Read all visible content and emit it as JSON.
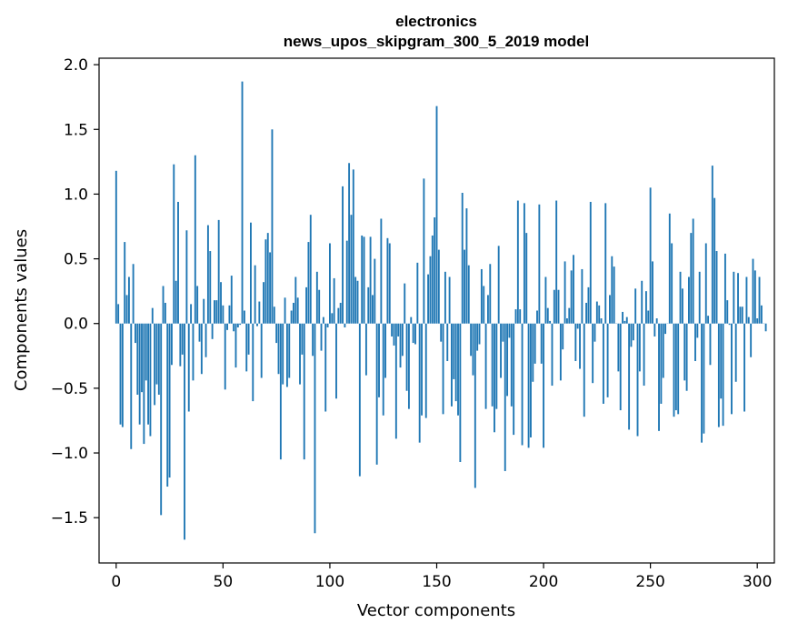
{
  "chart_data": {
    "type": "bar",
    "title": "electronics",
    "subtitle": "news_upos_skipgram_300_5_2019 model",
    "xlabel": "Vector components",
    "ylabel": "Components values",
    "xlim": [
      -8,
      308
    ],
    "ylim": [
      -1.85,
      2.05
    ],
    "xticks": [
      0,
      50,
      100,
      150,
      200,
      250,
      300
    ],
    "yticks": [
      -1.5,
      -1.0,
      -0.5,
      0.0,
      0.5,
      1.0,
      1.5,
      2.0
    ],
    "xtick_labels": [
      "0",
      "50",
      "100",
      "150",
      "200",
      "250",
      "300"
    ],
    "ytick_labels": [
      "−1.5",
      "−1.0",
      "−0.5",
      "0.0",
      "0.5",
      "1.0",
      "1.5",
      "2.0"
    ],
    "grid": false,
    "bar_color": "#1f77b4",
    "values": [
      1.18,
      0.15,
      -0.78,
      -0.8,
      0.63,
      0.22,
      0.36,
      -0.97,
      0.46,
      -0.15,
      -0.55,
      -0.78,
      -0.53,
      -0.93,
      -0.44,
      -0.78,
      -0.87,
      0.12,
      -0.63,
      -0.47,
      -0.55,
      -1.48,
      0.29,
      0.16,
      -1.26,
      -1.19,
      -0.32,
      1.23,
      0.33,
      0.94,
      -0.33,
      -0.24,
      -1.67,
      0.72,
      -0.68,
      0.15,
      -0.44,
      1.3,
      0.29,
      -0.14,
      -0.39,
      0.19,
      -0.26,
      0.76,
      0.56,
      -0.12,
      0.18,
      0.18,
      0.8,
      0.32,
      0.14,
      -0.51,
      -0.05,
      0.14,
      0.37,
      -0.06,
      -0.34,
      -0.03,
      -0.01,
      1.87,
      0.1,
      -0.37,
      -0.24,
      0.78,
      -0.6,
      0.45,
      -0.02,
      0.17,
      -0.42,
      0.32,
      0.65,
      0.7,
      0.55,
      1.5,
      0.13,
      -0.15,
      -0.39,
      -1.05,
      -0.47,
      0.2,
      -0.49,
      -0.42,
      0.1,
      0.16,
      0.36,
      0.2,
      -0.47,
      -0.24,
      -1.05,
      0.28,
      0.63,
      0.84,
      -0.25,
      -1.62,
      0.4,
      0.26,
      -0.21,
      0.05,
      -0.68,
      -0.03,
      0.62,
      0.08,
      0.35,
      -0.58,
      0.12,
      0.16,
      1.06,
      -0.03,
      0.64,
      1.24,
      0.84,
      1.19,
      0.36,
      0.33,
      -1.18,
      0.68,
      0.67,
      -0.4,
      0.28,
      0.67,
      0.22,
      0.5,
      -1.09,
      -0.57,
      0.81,
      -0.71,
      -0.42,
      0.66,
      0.62,
      -0.1,
      -0.17,
      -0.89,
      -0.1,
      -0.34,
      -0.25,
      0.31,
      -0.52,
      -0.66,
      0.05,
      -0.15,
      -0.16,
      0.47,
      -0.92,
      -0.71,
      1.12,
      -0.73,
      0.38,
      0.52,
      0.68,
      0.82,
      1.68,
      0.57,
      -0.14,
      -0.7,
      0.4,
      -0.29,
      0.36,
      -0.64,
      -0.43,
      -0.6,
      -0.71,
      -1.07,
      1.01,
      0.57,
      0.89,
      0.45,
      -0.25,
      -0.4,
      -1.27,
      -0.21,
      -0.16,
      0.42,
      0.29,
      -0.66,
      0.22,
      0.46,
      -0.64,
      -0.84,
      -0.66,
      0.6,
      -0.42,
      -0.14,
      -1.14,
      -0.56,
      -0.11,
      -0.64,
      -0.86,
      0.11,
      0.95,
      0.11,
      -0.94,
      0.93,
      0.7,
      -0.96,
      -0.88,
      -0.45,
      -0.31,
      0.1,
      0.92,
      -0.31,
      -0.96,
      0.36,
      0.12,
      0.02,
      -0.48,
      0.26,
      0.95,
      0.26,
      -0.44,
      -0.2,
      0.48,
      0.04,
      0.12,
      0.41,
      0.53,
      -0.29,
      -0.04,
      -0.35,
      0.42,
      -0.72,
      0.16,
      0.28,
      0.94,
      -0.46,
      -0.14,
      0.17,
      0.14,
      0.04,
      -0.62,
      0.93,
      -0.57,
      0.22,
      0.52,
      0.44,
      0.0,
      -0.37,
      -0.67,
      0.09,
      0.02,
      0.05,
      -0.82,
      -0.18,
      -0.13,
      0.27,
      -0.87,
      -0.37,
      0.33,
      -0.48,
      0.25,
      0.1,
      1.05,
      0.48,
      -0.1,
      0.04,
      -0.83,
      -0.62,
      -0.42,
      -0.08,
      0.0,
      0.85,
      0.62,
      -0.72,
      -0.67,
      -0.7,
      0.4,
      0.27,
      -0.44,
      -0.52,
      0.36,
      0.7,
      0.81,
      -0.29,
      -0.11,
      0.4,
      -0.92,
      -0.85,
      0.62,
      0.06,
      -0.32,
      1.22,
      0.97,
      0.56,
      -0.8,
      -0.58,
      -0.79,
      0.54,
      0.18,
      -0.01,
      -0.7,
      0.4,
      -0.45,
      0.39,
      0.13,
      0.13,
      -0.68,
      0.36,
      0.05,
      -0.26,
      0.5,
      0.41,
      0.04,
      0.36,
      0.14,
      0.0,
      -0.06
    ]
  }
}
